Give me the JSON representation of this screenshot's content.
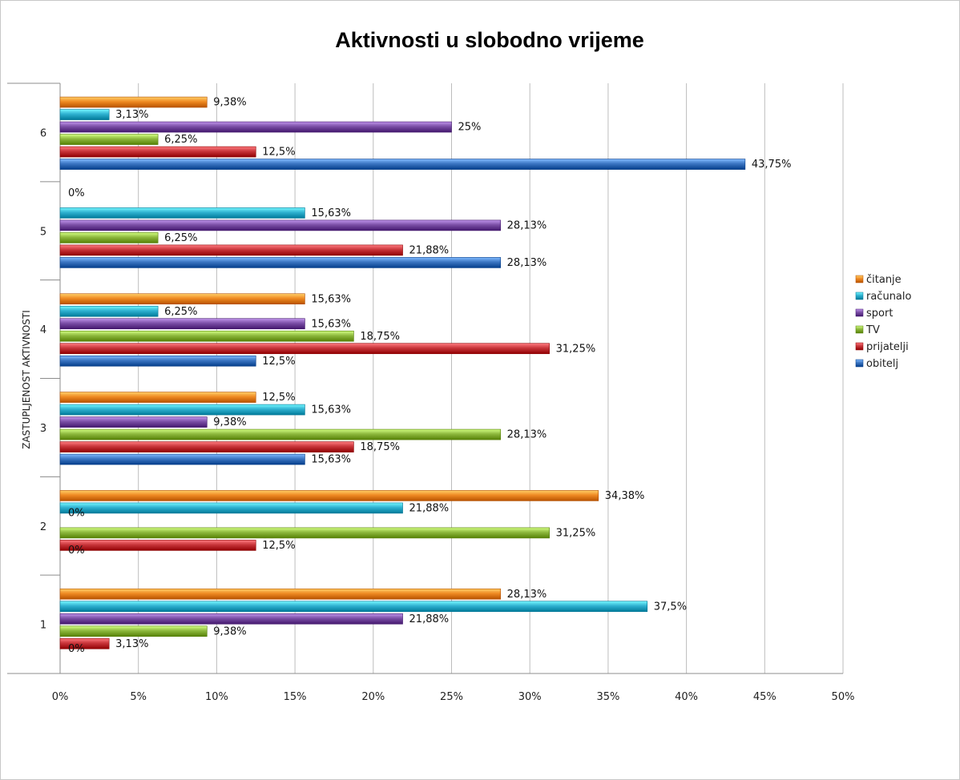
{
  "chart_data": {
    "type": "bar",
    "orientation": "horizontal",
    "title": "Aktivnosti u slobodno vrijeme",
    "ylabel": "ZASTUPLJENOST AKTIVNOSTI",
    "xlabel": "",
    "categories": [
      "1",
      "2",
      "3",
      "4",
      "5",
      "6"
    ],
    "x_ticks": [
      "0%",
      "5%",
      "10%",
      "15%",
      "20%",
      "25%",
      "30%",
      "35%",
      "40%",
      "45%",
      "50%"
    ],
    "xlim": [
      0,
      50
    ],
    "grid": true,
    "legend_position": "right",
    "series": [
      {
        "name": "obitelj",
        "color": "#3b75c2",
        "values": [
          0,
          0,
          15.63,
          12.5,
          28.13,
          43.75
        ],
        "labels": [
          "0%",
          "0%",
          "15,63%",
          "12,5%",
          "28,13%",
          "43,75%"
        ]
      },
      {
        "name": "prijatelji",
        "color": "#c8353a",
        "values": [
          3.13,
          12.5,
          18.75,
          31.25,
          21.88,
          12.5
        ],
        "labels": [
          "3,13%",
          "12,5%",
          "18,75%",
          "31,25%",
          "21,88%",
          "12,5%"
        ]
      },
      {
        "name": "TV",
        "color": "#8db83d",
        "values": [
          9.38,
          31.25,
          28.13,
          18.75,
          6.25,
          6.25
        ],
        "labels": [
          "9,38%",
          "31,25%",
          "28,13%",
          "18,75%",
          "6,25%",
          "6,25%"
        ]
      },
      {
        "name": "sport",
        "color": "#7b4fa6",
        "values": [
          21.88,
          0,
          9.38,
          15.63,
          28.13,
          25
        ],
        "labels": [
          "21,88%",
          "0%",
          "9,38%",
          "15,63%",
          "28,13%",
          "25%"
        ]
      },
      {
        "name": "računalo",
        "color": "#2fb1d0",
        "values": [
          37.5,
          21.88,
          15.63,
          6.25,
          15.63,
          3.13
        ],
        "labels": [
          "37,5%",
          "21,88%",
          "15,63%",
          "6,25%",
          "15,63%",
          "3,13%"
        ]
      },
      {
        "name": "čitanje",
        "color": "#ef8a23",
        "values": [
          28.13,
          34.38,
          12.5,
          15.63,
          0,
          9.38
        ],
        "labels": [
          "28,13%",
          "34,38%",
          "12,5%",
          "15,63%",
          "0%",
          "9,38%"
        ]
      }
    ],
    "legend_order": [
      "čitanje",
      "računalo",
      "sport",
      "TV",
      "prijatelji",
      "obitelj"
    ]
  }
}
